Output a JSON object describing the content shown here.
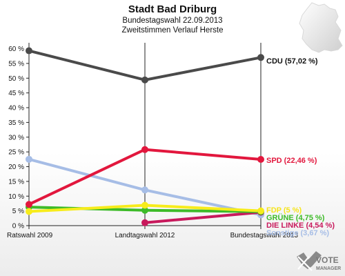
{
  "chart_data": {
    "type": "line",
    "title": "Stadt Bad Driburg",
    "subtitle_1": "Bundestagswahl 22.09.2013",
    "subtitle_2": "Zweitstimmen Verlauf Herste",
    "categories": [
      "Ratswahl 2009",
      "Landtagswahl 2012",
      "Bundestagswahl 2013"
    ],
    "ylim": [
      0,
      62
    ],
    "yticks": [
      "0 %",
      "5 %",
      "10 %",
      "15 %",
      "20 %",
      "25 %",
      "30 %",
      "35 %",
      "40 %",
      "45 %",
      "50 %",
      "55 %",
      "60 %"
    ],
    "series": [
      {
        "name": "CDU",
        "end_label": "CDU (57,02 %)",
        "color": "#4a4a4a",
        "label_color": "#111111",
        "values": [
          59.3,
          49.4,
          57.02
        ]
      },
      {
        "name": "SPD",
        "end_label": "SPD (22,46 %)",
        "color": "#e2173d",
        "label_color": "#e2173d",
        "values": [
          7.2,
          25.8,
          22.46
        ]
      },
      {
        "name": "FDP",
        "end_label": "FDP (5 %)",
        "color": "#f7ec1b",
        "label_color": "#f5e41a",
        "values": [
          4.8,
          6.9,
          5.0
        ]
      },
      {
        "name": "GRÜNE",
        "end_label": "GRÜNE (4,75 %)",
        "color": "#3dbb28",
        "label_color": "#3dbb28",
        "values": [
          6.3,
          5.2,
          4.75
        ]
      },
      {
        "name": "DIE LINKE",
        "end_label": "DIE LINKE (4,54 %)",
        "color": "#c8195c",
        "label_color": "#c8195c",
        "values": [
          null,
          1.0,
          4.54
        ]
      },
      {
        "name": "Sonstige",
        "end_label": "Sonstige (3,67 %)",
        "color": "#a6bde6",
        "label_color": "#a6bde6",
        "values": [
          22.5,
          12.1,
          3.67
        ]
      }
    ],
    "grid": false,
    "legend": "inline-right"
  },
  "logo": {
    "line1": "VOTE",
    "line2": "MANAGER"
  }
}
